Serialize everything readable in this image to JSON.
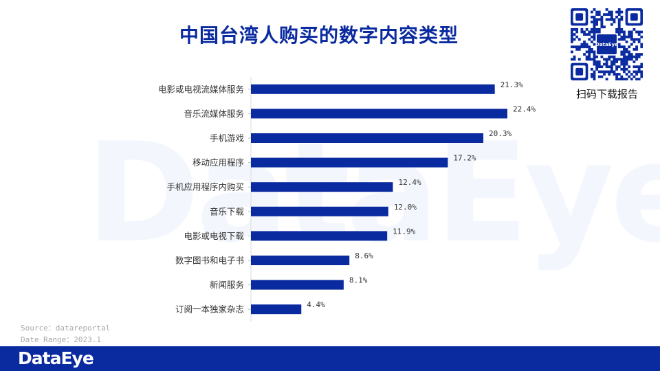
{
  "page": {
    "title": "中国台湾人购买的数字内容类型",
    "watermark_text": "DataEye",
    "qr_center_label": "DataEye",
    "qr_caption": "扫码下载报告",
    "source_line": "Source：datareportal",
    "date_line": "Date Range：2023.1",
    "footer_brand": "DataEye"
  },
  "colors": {
    "bar": "#0a2aa0",
    "title": "#0a2aa0",
    "footer": "#0a2aa0"
  },
  "chart_data": {
    "type": "bar",
    "orientation": "horizontal",
    "categories": [
      "电影或电视流媒体服务",
      "音乐流媒体服务",
      "手机游戏",
      "移动应用程序",
      "手机应用程序内购买",
      "音乐下载",
      "电影或电视下载",
      "数字图书和电子书",
      "新闻服务",
      "订阅一本独家杂志"
    ],
    "values": [
      21.3,
      22.4,
      20.3,
      17.2,
      12.4,
      12.0,
      11.9,
      8.6,
      8.1,
      4.4
    ],
    "value_labels": [
      "21.3%",
      "22.4%",
      "20.3%",
      "17.2%",
      "12.4%",
      "12.0%",
      "11.9%",
      "8.6%",
      "8.1%",
      "4.4%"
    ],
    "xlim": [
      0,
      22.4
    ],
    "grid": false,
    "legend": false
  }
}
